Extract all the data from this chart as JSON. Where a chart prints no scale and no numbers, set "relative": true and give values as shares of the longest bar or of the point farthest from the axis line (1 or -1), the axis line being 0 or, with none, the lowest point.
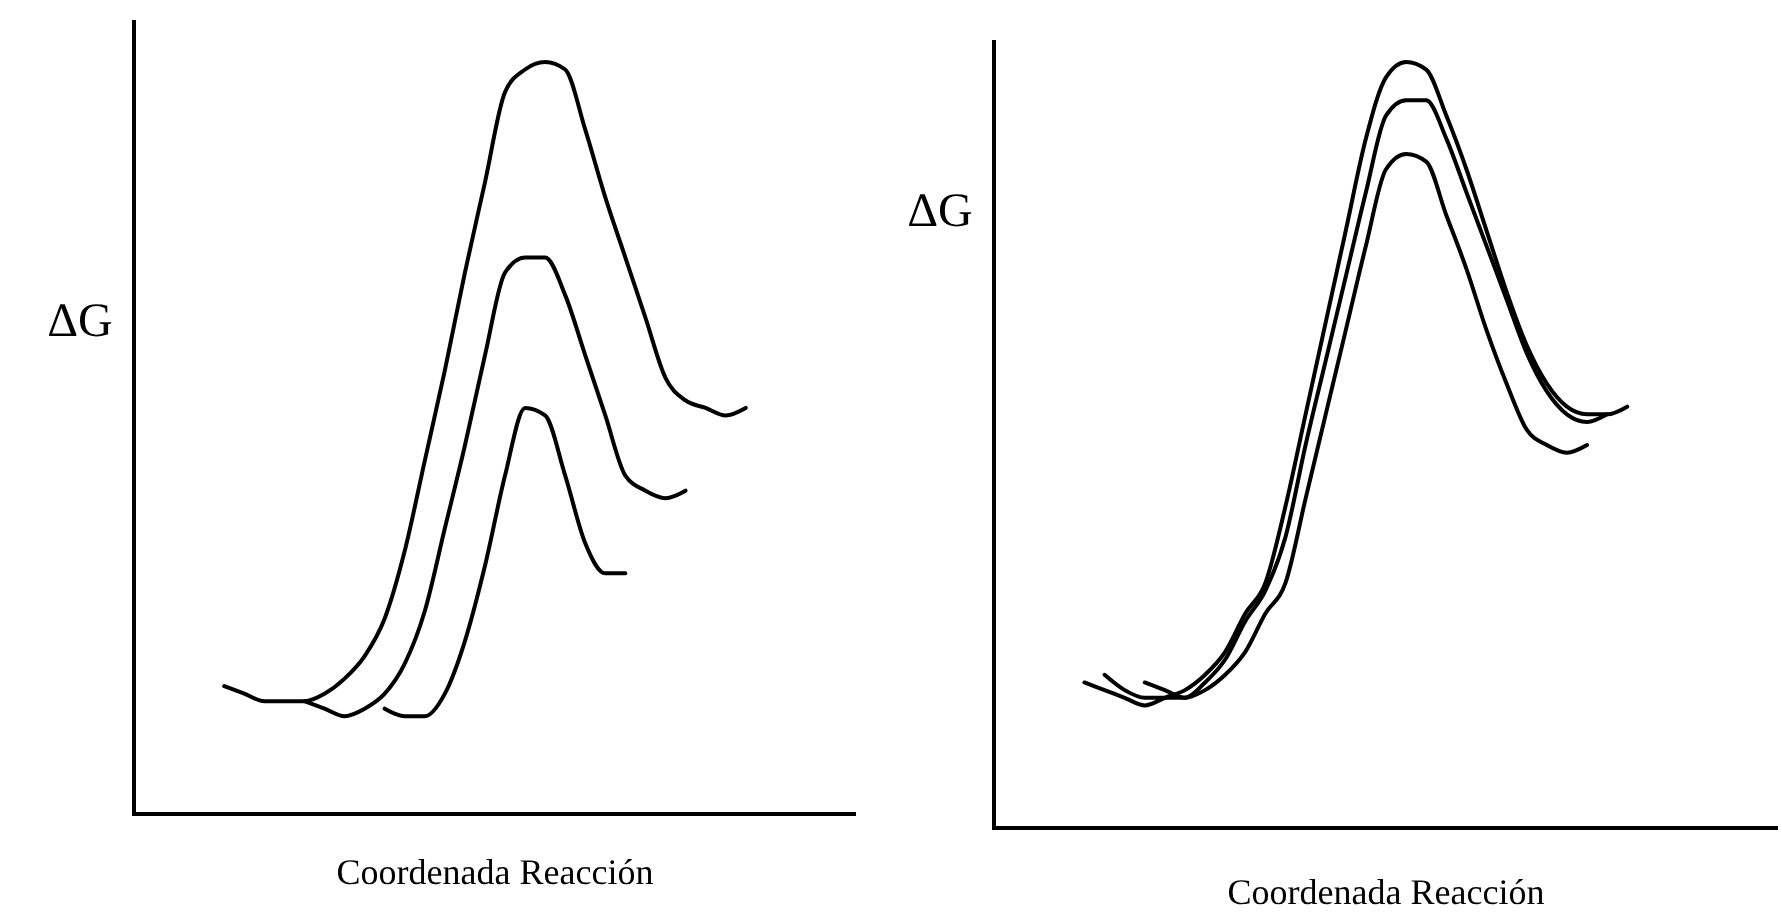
{
  "chart_data": [
    {
      "type": "line",
      "xlabel": "Coordenada Reacción",
      "ylabel": "ΔG",
      "relative": true,
      "categories": [
        null,
        null,
        null,
        null,
        null,
        null,
        null,
        null,
        null,
        null,
        null,
        null,
        null,
        null,
        null,
        null,
        null,
        null,
        null,
        null,
        null,
        null,
        null,
        null,
        null,
        null,
        null,
        null,
        null,
        null,
        null,
        null,
        null,
        null,
        null,
        null
      ],
      "series": [
        {
          "color": "#000000",
          "values": [
            null,
            null,
            null,
            null,
            0.17,
            0.16,
            0.15,
            0.15,
            0.15,
            0.16,
            0.18,
            0.21,
            0.26,
            0.35,
            0.47,
            0.59,
            0.72,
            0.84,
            0.96,
            0.99,
            1.0,
            0.99,
            0.91,
            0.82,
            0.74,
            0.66,
            0.58,
            0.55,
            0.54,
            0.53,
            0.54,
            null,
            null,
            null,
            null,
            null
          ]
        },
        {
          "color": "#000000",
          "values": [
            null,
            null,
            null,
            null,
            null,
            null,
            null,
            null,
            0.15,
            0.14,
            0.13,
            0.14,
            0.16,
            0.2,
            0.27,
            0.38,
            0.49,
            0.61,
            0.72,
            0.74,
            0.74,
            0.69,
            0.61,
            0.53,
            0.45,
            0.43,
            0.42,
            0.43,
            null,
            null,
            null,
            null,
            null,
            null,
            null,
            null
          ]
        },
        {
          "color": "#000000",
          "values": [
            null,
            null,
            null,
            null,
            null,
            null,
            null,
            null,
            null,
            null,
            null,
            null,
            0.14,
            0.13,
            0.13,
            0.16,
            0.23,
            0.33,
            0.45,
            0.54,
            0.53,
            0.45,
            0.36,
            0.32,
            0.32,
            null,
            null,
            null,
            null,
            null,
            null,
            null,
            null,
            null,
            null,
            null
          ]
        }
      ]
    },
    {
      "type": "line",
      "xlabel": "Coordenada Reacción",
      "ylabel": "ΔG",
      "relative": true,
      "categories": [
        null,
        null,
        null,
        null,
        null,
        null,
        null,
        null,
        null,
        null,
        null,
        null,
        null,
        null,
        null,
        null,
        null,
        null,
        null,
        null,
        null,
        null,
        null,
        null,
        null,
        null,
        null,
        null,
        null,
        null,
        null,
        null,
        null,
        null,
        null,
        null,
        null,
        null,
        null
      ],
      "series": [
        {
          "color": "#000000",
          "values": [
            null,
            null,
            null,
            null,
            0.19,
            0.18,
            0.17,
            0.16,
            0.17,
            0.18,
            0.2,
            0.23,
            0.28,
            0.32,
            0.42,
            0.54,
            0.66,
            0.78,
            0.9,
            0.98,
            1.0,
            0.99,
            0.93,
            0.86,
            0.78,
            0.7,
            0.63,
            0.58,
            0.55,
            0.54,
            0.54,
            0.55,
            null,
            null,
            null,
            null,
            null,
            null,
            null
          ]
        },
        {
          "color": "#000000",
          "values": [
            null,
            null,
            null,
            null,
            null,
            0.2,
            0.18,
            0.17,
            0.17,
            0.17,
            0.19,
            0.22,
            0.27,
            0.31,
            0.38,
            0.5,
            0.61,
            0.72,
            0.83,
            0.93,
            0.95,
            0.95,
            0.9,
            0.83,
            0.76,
            0.69,
            0.62,
            0.57,
            0.54,
            0.53,
            0.54,
            null,
            null,
            null,
            null,
            null,
            null,
            null,
            null
          ]
        },
        {
          "color": "#000000",
          "values": [
            null,
            null,
            null,
            null,
            null,
            null,
            null,
            0.19,
            0.18,
            0.17,
            0.18,
            0.2,
            0.23,
            0.28,
            0.32,
            0.43,
            0.54,
            0.65,
            0.76,
            0.86,
            0.88,
            0.87,
            0.8,
            0.73,
            0.65,
            0.58,
            0.52,
            0.5,
            0.49,
            0.5,
            null,
            null,
            null,
            null,
            null,
            null,
            null,
            null,
            null
          ]
        }
      ]
    }
  ]
}
